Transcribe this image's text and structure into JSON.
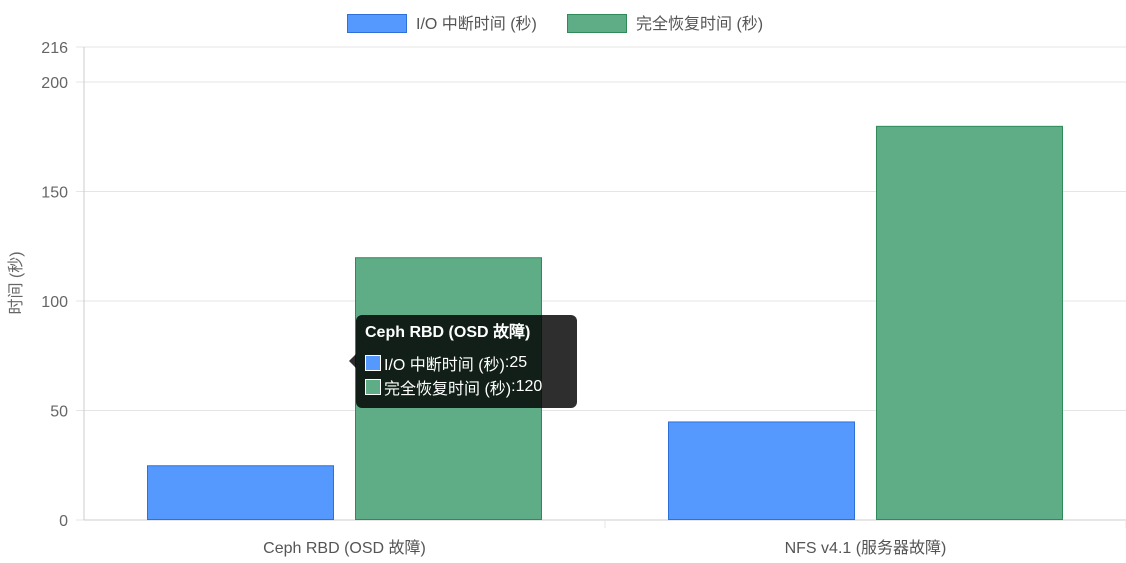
{
  "chart_data": {
    "type": "bar",
    "categories": [
      "Ceph RBD (OSD 故障)",
      "NFS v4.1 (服务器故障)"
    ],
    "series": [
      {
        "name": "I/O 中断时间 (秒)",
        "values": [
          25,
          45
        ],
        "fill": "#5599ff",
        "border": "#2e6fd8"
      },
      {
        "name": "完全恢复时间 (秒)",
        "values": [
          120,
          180
        ],
        "fill": "#5fad87",
        "border": "#2e8b57"
      }
    ],
    "title": "",
    "xlabel": "",
    "ylabel": "时间 (秒)",
    "ylim": [
      0,
      216
    ],
    "yticks": [
      "0",
      "50",
      "100",
      "150",
      "200",
      "216"
    ],
    "grid": true,
    "legend_position": "top"
  },
  "tooltip": {
    "title": "Ceph RBD (OSD 故障)",
    "rows": [
      {
        "label": "I/O 中断时间 (秒)",
        "value": "25",
        "color": "#5599ff"
      },
      {
        "label": "完全恢复时间 (秒)",
        "value": "120",
        "color": "#5fad87"
      }
    ]
  },
  "colors": {
    "grid": "#e5e5e5",
    "axis": "#cccccc",
    "text": "#666666"
  }
}
